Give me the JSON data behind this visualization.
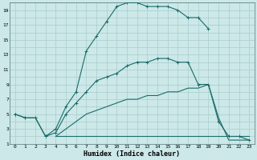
{
  "xlabel": "Humidex (Indice chaleur)",
  "bg_color": "#cce8e8",
  "grid_color": "#aacccc",
  "line_color": "#1a6b6b",
  "xlim": [
    -0.5,
    23.5
  ],
  "ylim": [
    1,
    20
  ],
  "xticks": [
    0,
    1,
    2,
    3,
    4,
    5,
    6,
    7,
    8,
    9,
    10,
    11,
    12,
    13,
    14,
    15,
    16,
    17,
    18,
    19,
    20,
    21,
    22,
    23
  ],
  "yticks": [
    1,
    3,
    5,
    7,
    9,
    11,
    13,
    15,
    17,
    19
  ],
  "line_upper_x": [
    0,
    1,
    2,
    3,
    4,
    5,
    6,
    7,
    8,
    9,
    10,
    11,
    12,
    13,
    14,
    15,
    16,
    17,
    18,
    19
  ],
  "line_upper_y": [
    5,
    4.5,
    4.5,
    2,
    3,
    6,
    8,
    13.5,
    15.5,
    17.5,
    19.5,
    20,
    20,
    19.5,
    19.5,
    19.5,
    19,
    18,
    18,
    16.5
  ],
  "line_mid_x": [
    0,
    1,
    2,
    3,
    4,
    5,
    6,
    7,
    8,
    9,
    10,
    11,
    12,
    13,
    14,
    15,
    16,
    17,
    18,
    19,
    20,
    21,
    22,
    23
  ],
  "line_mid_y": [
    5,
    4.5,
    4.5,
    2,
    2.5,
    5,
    6.5,
    8,
    9.5,
    10,
    10.5,
    11.5,
    12,
    12,
    12.5,
    12.5,
    12,
    12,
    9,
    9,
    4,
    2,
    2,
    1.5
  ],
  "line_lower_x": [
    4,
    5,
    6,
    7,
    8,
    9,
    10,
    11,
    12,
    13,
    14,
    15,
    16,
    17,
    18,
    19,
    20,
    21,
    22,
    23
  ],
  "line_lower_y": [
    2,
    3,
    4,
    5,
    5.5,
    6,
    6.5,
    7,
    7,
    7.5,
    7.5,
    8,
    8,
    8.5,
    8.5,
    9,
    4.5,
    1.5,
    1.5,
    1.5
  ],
  "line_flat_x": [
    4,
    5,
    6,
    7,
    8,
    9,
    10,
    11,
    12,
    13,
    14,
    15,
    16,
    17,
    18,
    19,
    20,
    21,
    22,
    23
  ],
  "line_flat_y": [
    2,
    2,
    2,
    2,
    2,
    2,
    2,
    2,
    2,
    2,
    2,
    2,
    2,
    2,
    2,
    2,
    2,
    2,
    2,
    2
  ]
}
